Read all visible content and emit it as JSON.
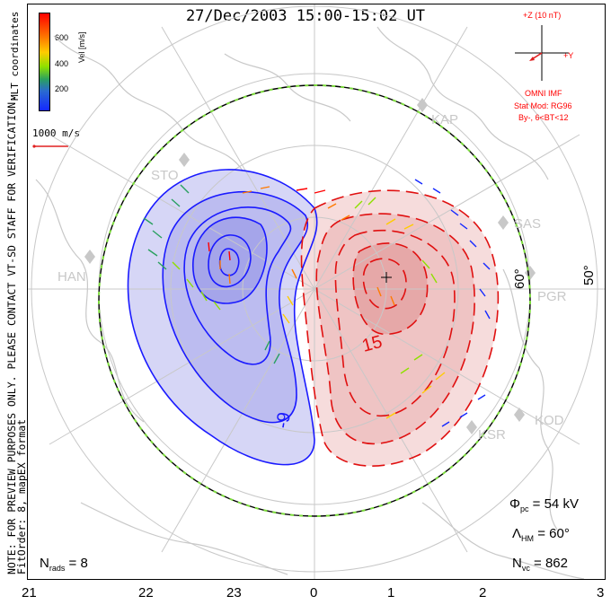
{
  "title": "27/Dec/2003 15:00-15:02 UT",
  "side_note": "NOTE: FOR PREVIEW PURPOSES ONLY. PLEASE CONTACT VT-SD STAFF FOR VERIFICATION.",
  "fit_note": "FitOrder: 8, mapEX format",
  "coords_label": "MLT coordinates",
  "colorbar": {
    "unit": "Vel [m/s]",
    "ticks": [
      "600",
      "400",
      "200"
    ],
    "colors": [
      "#ff0000",
      "#ff7a00",
      "#ffcc00",
      "#8ee000",
      "#2aa060",
      "#2a6ad0",
      "#1428ff"
    ]
  },
  "vector_scale": "1000 m/s",
  "mlt_axis": [
    "21",
    "22",
    "23",
    "0",
    "1",
    "2",
    "3"
  ],
  "latitude_labels": [
    "60°",
    "50°"
  ],
  "contour_labels": [
    "-9",
    "15"
  ],
  "radar_sites": [
    "KAP",
    "STO",
    "SAS",
    "HAN",
    "PGR",
    "KOD",
    "KSR"
  ],
  "imf": {
    "z_label": "+Z (10 nT)",
    "y_label": "+Y",
    "source": "OMNI IMF",
    "model": "Stat Mod: RG96",
    "condition": "By-, 6<BT<12"
  },
  "stats": {
    "phi_pc": "54 kV",
    "lambda_hm": "60°",
    "n_vc": "862",
    "n_rads": "8"
  },
  "colors": {
    "negative_cell": "#1a1aff",
    "positive_cell": "#e01010",
    "boundary": "#7cdc3c",
    "grid": "#c8c8c8",
    "coast": "#c8c8c8"
  }
}
